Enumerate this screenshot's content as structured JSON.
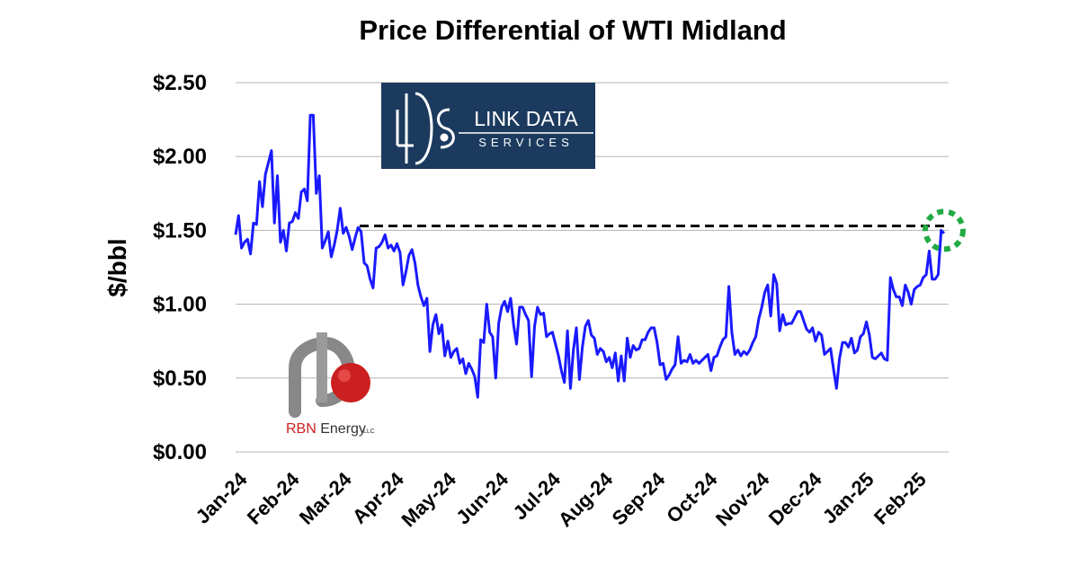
{
  "chart_data": {
    "type": "line",
    "title": "Price Differential of WTI Midland",
    "ylabel": "$/bbl",
    "xlabel": "",
    "ylim": [
      0,
      2.5
    ],
    "y_ticks": [
      {
        "value": 0,
        "label": "$0.00"
      },
      {
        "value": 0.5,
        "label": "$0.50"
      },
      {
        "value": 1.0,
        "label": "$1.00"
      },
      {
        "value": 1.5,
        "label": "$1.50"
      },
      {
        "value": 2.0,
        "label": "$2.00"
      },
      {
        "value": 2.5,
        "label": "$2.50"
      }
    ],
    "x_ticks": [
      "Jan-24",
      "Feb-24",
      "Mar-24",
      "Apr-24",
      "May-24",
      "Jun-24",
      "Jul-24",
      "Aug-24",
      "Sep-24",
      "Oct-24",
      "Nov-24",
      "Dec-24",
      "Jan-25",
      "Feb-25"
    ],
    "grid": true,
    "legend": "none",
    "series": [
      {
        "color": "#1a1aff",
        "values": [
          1.47,
          1.6,
          1.38,
          1.42,
          1.44,
          1.34,
          1.55,
          1.54,
          1.83,
          1.66,
          1.88,
          1.96,
          2.04,
          1.55,
          1.87,
          1.42,
          1.5,
          1.36,
          1.55,
          1.56,
          1.62,
          1.58,
          1.76,
          1.78,
          1.7,
          2.28,
          2.28,
          1.75,
          1.87,
          1.38,
          1.43,
          1.49,
          1.32,
          1.4,
          1.5,
          1.65,
          1.48,
          1.52,
          1.46,
          1.37,
          1.45,
          1.52,
          1.49,
          1.28,
          1.26,
          1.17,
          1.11,
          1.38,
          1.39,
          1.42,
          1.47,
          1.38,
          1.4,
          1.36,
          1.41,
          1.35,
          1.13,
          1.22,
          1.33,
          1.37,
          1.28,
          1.13,
          1.05,
          0.99,
          1.04,
          0.68,
          0.86,
          0.93,
          0.8,
          0.86,
          0.65,
          0.75,
          0.64,
          0.68,
          0.7,
          0.6,
          0.63,
          0.53,
          0.6,
          0.56,
          0.51,
          0.37,
          0.76,
          0.74,
          1.0,
          0.81,
          0.78,
          0.5,
          0.87,
          0.98,
          1.02,
          0.95,
          1.04,
          0.86,
          0.73,
          0.98,
          0.98,
          0.93,
          0.89,
          0.51,
          0.85,
          0.98,
          0.93,
          0.94,
          0.78,
          0.8,
          0.81,
          0.73,
          0.65,
          0.55,
          0.47,
          0.82,
          0.43,
          0.69,
          0.84,
          0.49,
          0.71,
          0.85,
          0.89,
          0.79,
          0.77,
          0.66,
          0.7,
          0.68,
          0.61,
          0.64,
          0.57,
          0.67,
          0.48,
          0.65,
          0.48,
          0.77,
          0.64,
          0.72,
          0.69,
          0.7,
          0.76,
          0.76,
          0.81,
          0.84,
          0.84,
          0.74,
          0.59,
          0.6,
          0.49,
          0.52,
          0.56,
          0.59,
          0.78,
          0.6,
          0.62,
          0.61,
          0.66,
          0.6,
          0.62,
          0.6,
          0.62,
          0.64,
          0.66,
          0.55,
          0.64,
          0.65,
          0.71,
          0.76,
          0.78,
          1.12,
          0.81,
          0.66,
          0.69,
          0.65,
          0.68,
          0.66,
          0.69,
          0.74,
          0.78,
          0.9,
          0.98,
          1.08,
          1.13,
          0.92,
          1.2,
          1.14,
          0.82,
          0.93,
          0.86,
          0.87,
          0.87,
          0.91,
          0.95,
          0.95,
          0.89,
          0.83,
          0.81,
          0.84,
          0.75,
          0.81,
          0.79,
          0.66,
          0.68,
          0.7,
          0.56,
          0.43,
          0.63,
          0.74,
          0.74,
          0.71,
          0.77,
          0.67,
          0.69,
          0.78,
          0.8,
          0.88,
          0.79,
          0.64,
          0.63,
          0.65,
          0.67,
          0.63,
          0.62,
          1.18,
          1.1,
          1.05,
          1.05,
          0.99,
          1.13,
          1.08,
          1.0,
          1.1,
          1.12,
          1.13,
          1.18,
          1.2,
          1.36,
          1.17,
          1.17,
          1.2,
          1.5,
          1.48
        ]
      }
    ],
    "annotations": [
      {
        "type": "dashed-reference-line",
        "y": 1.53,
        "color": "#000000"
      },
      {
        "type": "highlight-circle",
        "y": 1.5,
        "color": "#22aa44"
      }
    ]
  },
  "logos": {
    "lds": {
      "line1": "LINK DATA",
      "line2": "SERVICES",
      "bg": "#1b3a5e"
    },
    "rbn": {
      "name_main": "RBN",
      "name_rest": " Energy",
      "suffix": "LLC",
      "accent": "#cc1f1f"
    }
  },
  "colors": {
    "line": "#1a1aff",
    "grid": "#b3b3b3",
    "circle": "#22aa44"
  }
}
